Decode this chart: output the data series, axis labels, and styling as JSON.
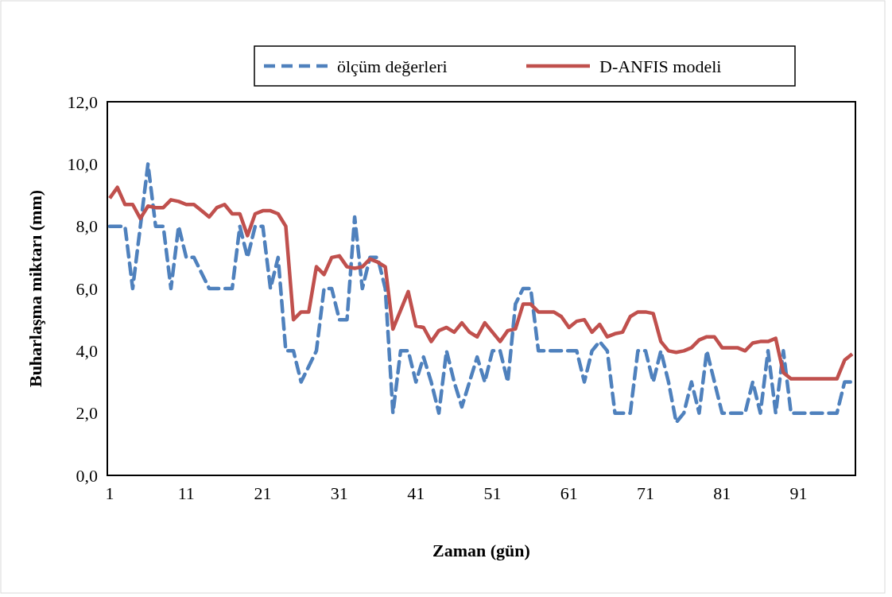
{
  "chart_data": {
    "type": "line",
    "xlabel": "Zaman (gün)",
    "ylabel": "Buharlaşma miktarı (mm)",
    "categories": [
      "1",
      null,
      null,
      null,
      null,
      null,
      null,
      null,
      null,
      null,
      "11",
      null,
      null,
      null,
      null,
      null,
      null,
      null,
      null,
      null,
      "21",
      null,
      null,
      null,
      null,
      null,
      null,
      null,
      null,
      null,
      "31",
      null,
      null,
      null,
      null,
      null,
      null,
      null,
      null,
      null,
      "41",
      null,
      null,
      null,
      null,
      null,
      null,
      null,
      null,
      null,
      "51",
      null,
      null,
      null,
      null,
      null,
      null,
      null,
      null,
      null,
      "61",
      null,
      null,
      null,
      null,
      null,
      null,
      null,
      null,
      null,
      "71",
      null,
      null,
      null,
      null,
      null,
      null,
      null,
      null,
      null,
      "81",
      null,
      null,
      null,
      null,
      null,
      null,
      null,
      null,
      null,
      "91",
      null,
      null,
      null,
      null,
      null,
      null,
      null
    ],
    "series": [
      {
        "name": "ölçüm değerleri",
        "color": "#4f81bd",
        "line_style": "dashed",
        "values": [
          8,
          8,
          8,
          6,
          8,
          10,
          8,
          8,
          6,
          8,
          7,
          7,
          6.5,
          6,
          6,
          6,
          6,
          8,
          7,
          8,
          8,
          6,
          7,
          4,
          4,
          3,
          3.5,
          4,
          6,
          6,
          5,
          5,
          8.3,
          6,
          7,
          7,
          6,
          2,
          4,
          4,
          3,
          3.8,
          3,
          2,
          4,
          3,
          2.2,
          3,
          3.8,
          3,
          4,
          4,
          3,
          5.5,
          6,
          6,
          4,
          4,
          4,
          4,
          4,
          4,
          3,
          4,
          4.3,
          4,
          2,
          2,
          2,
          4,
          4,
          3,
          4,
          3,
          1.7,
          2,
          3,
          2,
          4,
          3,
          2,
          2,
          2,
          2,
          3,
          2,
          4,
          2,
          4,
          2,
          2,
          2,
          2,
          2,
          2,
          2,
          3,
          3
        ]
      },
      {
        "name": "D-ANFIS modeli",
        "color": "#c0504d",
        "line_style": "solid",
        "values": [
          8.9,
          9.25,
          8.7,
          8.7,
          8.25,
          8.65,
          8.6,
          8.6,
          8.85,
          8.8,
          8.7,
          8.7,
          8.5,
          8.3,
          8.6,
          8.7,
          8.4,
          8.4,
          7.7,
          8.4,
          8.5,
          8.5,
          8.4,
          8,
          5,
          5.25,
          5.25,
          6.7,
          6.45,
          7,
          7.05,
          6.7,
          6.65,
          6.7,
          6.95,
          6.85,
          6.7,
          4.7,
          5.3,
          5.9,
          4.8,
          4.75,
          4.3,
          4.65,
          4.75,
          4.6,
          4.9,
          4.6,
          4.45,
          4.9,
          4.6,
          4.3,
          4.65,
          4.7,
          5.5,
          5.5,
          5.25,
          5.25,
          5.25,
          5.1,
          4.75,
          4.95,
          5,
          4.6,
          4.85,
          4.45,
          4.55,
          4.6,
          5.1,
          5.25,
          5.25,
          5.2,
          4.3,
          4,
          3.95,
          4,
          4.1,
          4.35,
          4.45,
          4.45,
          4.1,
          4.1,
          4.1,
          4,
          4.25,
          4.3,
          4.3,
          4.4,
          3.3,
          3.1,
          3.1,
          3.1,
          3.1,
          3.1,
          3.1,
          3.1,
          3.7,
          3.9
        ]
      }
    ],
    "ylim": [
      0,
      12
    ],
    "yticks": [
      {
        "value": 0,
        "label": "0,0"
      },
      {
        "value": 2,
        "label": "2,0"
      },
      {
        "value": 4,
        "label": "4,0"
      },
      {
        "value": 6,
        "label": "6,0"
      },
      {
        "value": 8,
        "label": "8,0"
      },
      {
        "value": 10,
        "label": "10,0"
      },
      {
        "value": 12,
        "label": "12,0"
      }
    ],
    "grid": false,
    "legend": "top right",
    "marker": "none"
  }
}
